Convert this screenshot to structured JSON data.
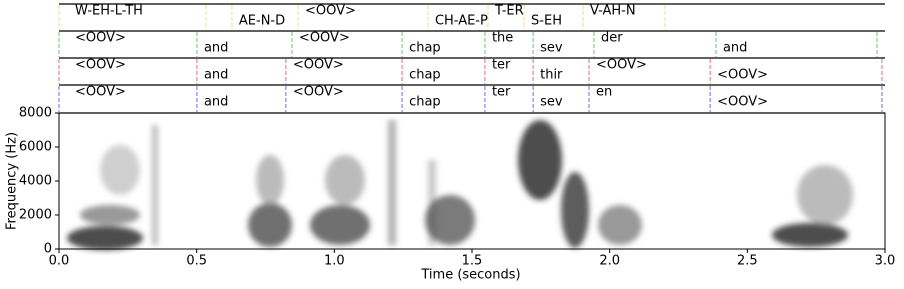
{
  "chart_data": {
    "type": "spectrogram",
    "xlabel": "Time (seconds)",
    "ylabel": "Frequency (Hz)",
    "xlim": [
      0,
      3.0
    ],
    "ylim": [
      0,
      8000
    ],
    "xticks": [
      {
        "value": 0,
        "label": "0.0"
      },
      {
        "value": 0.5,
        "label": "0.5"
      },
      {
        "value": 1,
        "label": "1.0"
      },
      {
        "value": 1.5,
        "label": "1.5"
      },
      {
        "value": 2,
        "label": "2.0"
      },
      {
        "value": 2.5,
        "label": "2.5"
      },
      {
        "value": 3,
        "label": "3.0"
      }
    ],
    "yticks": [
      0,
      2000,
      4000,
      6000,
      8000
    ],
    "tiers": [
      {
        "color": "#e8e07a",
        "boundaries": [
          0,
          0.534,
          0.628,
          0.868,
          1.34,
          1.558,
          1.689,
          1.903,
          2.201
        ],
        "labels": [
          "W-EH-L-TH",
          null,
          "AE-N-D",
          "<OOV>",
          "CH-AE-P",
          "T-ER",
          "S-EH",
          "V-AH-N"
        ]
      },
      {
        "color": "#6cc36c",
        "boundaries": [
          0,
          0.501,
          0.846,
          1.246,
          1.547,
          1.722,
          1.943,
          2.386,
          2.971
        ],
        "labels": [
          "<OOV>",
          "and",
          "<OOV>",
          "chap",
          "the",
          "sev",
          "der",
          "and"
        ]
      },
      {
        "color": "#ee6b6b",
        "boundaries": [
          0,
          0.501,
          0.824,
          1.246,
          1.547,
          1.722,
          1.925,
          2.365,
          2.989
        ],
        "labels": [
          "<OOV>",
          "and",
          "<OOV>",
          "chap",
          "ter",
          "thir",
          "<OOV>",
          "<OOV>"
        ]
      },
      {
        "color": "#6b6bee",
        "boundaries": [
          0,
          0.501,
          0.824,
          1.246,
          1.547,
          1.722,
          1.925,
          2.365,
          2.989
        ],
        "labels": [
          "<OOV>",
          "and",
          "<OOV>",
          "chap",
          "ter",
          "sev",
          "en",
          "<OOV>"
        ]
      }
    ]
  }
}
